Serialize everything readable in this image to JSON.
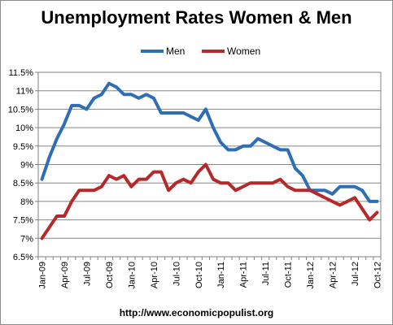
{
  "chart_data": {
    "type": "line",
    "title": "Unemployment Rates Women & Men",
    "xlabel": "",
    "ylabel": "",
    "ylim": [
      6.5,
      11.5
    ],
    "yticks": [
      "6.5%",
      "7%",
      "7.5%",
      "8%",
      "8.5%",
      "9%",
      "9.5%",
      "10%",
      "10.5%",
      "11%",
      "11.5%"
    ],
    "ytick_values": [
      6.5,
      7,
      7.5,
      8,
      8.5,
      9,
      9.5,
      10,
      10.5,
      11,
      11.5
    ],
    "x": [
      "Jan-09",
      "Feb-09",
      "Mar-09",
      "Apr-09",
      "May-09",
      "Jun-09",
      "Jul-09",
      "Aug-09",
      "Sep-09",
      "Oct-09",
      "Nov-09",
      "Dec-09",
      "Jan-10",
      "Feb-10",
      "Mar-10",
      "Apr-10",
      "May-10",
      "Jun-10",
      "Jul-10",
      "Aug-10",
      "Sep-10",
      "Oct-10",
      "Nov-10",
      "Dec-10",
      "Jan-11",
      "Feb-11",
      "Mar-11",
      "Apr-11",
      "May-11",
      "Jun-11",
      "Jul-11",
      "Aug-11",
      "Sep-11",
      "Oct-11",
      "Nov-11",
      "Dec-11",
      "Jan-12",
      "Feb-12",
      "Mar-12",
      "Apr-12",
      "May-12",
      "Jun-12",
      "Jul-12",
      "Aug-12",
      "Sep-12",
      "Oct-12"
    ],
    "xtick_labels": [
      "Jan-09",
      "Apr-09",
      "Jul-09",
      "Oct-09",
      "Jan-10",
      "Apr-10",
      "Jul-10",
      "Oct-10",
      "Jan-11",
      "Apr-11",
      "Jul-11",
      "Oct-11",
      "Jan-12",
      "Apr-12",
      "Jul-12",
      "Oct-12"
    ],
    "series": [
      {
        "name": "Men",
        "color": "#2f6db4",
        "values": [
          8.6,
          9.2,
          9.7,
          10.1,
          10.6,
          10.6,
          10.5,
          10.8,
          10.9,
          11.2,
          11.1,
          10.9,
          10.9,
          10.8,
          10.9,
          10.8,
          10.4,
          10.4,
          10.4,
          10.4,
          10.3,
          10.2,
          10.5,
          10.0,
          9.6,
          9.4,
          9.4,
          9.5,
          9.5,
          9.7,
          9.6,
          9.5,
          9.4,
          9.4,
          8.9,
          8.7,
          8.3,
          8.3,
          8.3,
          8.2,
          8.4,
          8.4,
          8.4,
          8.3,
          8.0,
          8.0
        ]
      },
      {
        "name": "Women",
        "color": "#b5292a",
        "values": [
          7.0,
          7.3,
          7.6,
          7.6,
          8.0,
          8.3,
          8.3,
          8.3,
          8.4,
          8.7,
          8.6,
          8.7,
          8.4,
          8.6,
          8.6,
          8.8,
          8.8,
          8.3,
          8.5,
          8.6,
          8.5,
          8.8,
          9.0,
          8.6,
          8.5,
          8.5,
          8.3,
          8.4,
          8.5,
          8.5,
          8.5,
          8.5,
          8.6,
          8.4,
          8.3,
          8.3,
          8.3,
          8.2,
          8.1,
          8.0,
          7.9,
          8.0,
          8.1,
          7.8,
          7.5,
          7.7
        ]
      }
    ],
    "grid": true,
    "legend": "top"
  },
  "credit": "http://www.economicpopulist.org"
}
